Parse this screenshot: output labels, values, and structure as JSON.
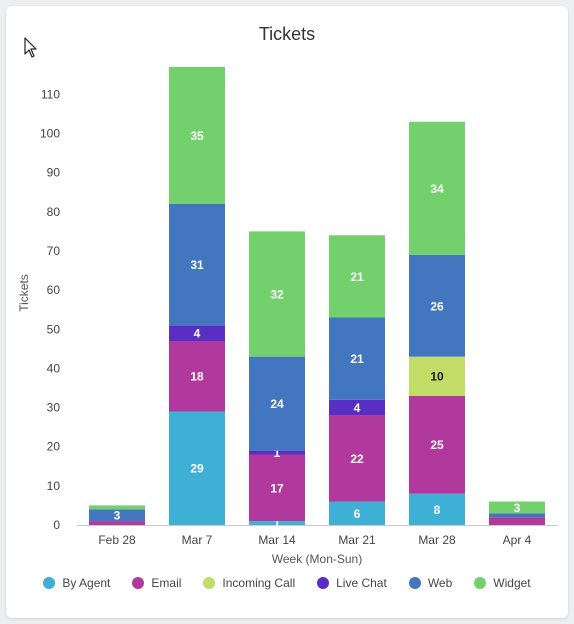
{
  "chart_data": {
    "type": "bar",
    "stacked": true,
    "title": "Tickets",
    "xlabel": "Week (Mon-Sun)",
    "ylabel": "Tickets",
    "ylim": [
      0,
      117
    ],
    "yticks": [
      0,
      10,
      20,
      30,
      40,
      50,
      60,
      70,
      80,
      90,
      100,
      110
    ],
    "categories": [
      "Feb 28",
      "Mar 7",
      "Mar 14",
      "Mar 21",
      "Mar 28",
      "Apr 4"
    ],
    "legend_position": "bottom",
    "series": [
      {
        "name": "By Agent",
        "color": "#3eb0d5",
        "values": [
          0,
          29,
          1,
          6,
          8,
          0
        ]
      },
      {
        "name": "Email",
        "color": "#b1399e",
        "values": [
          1,
          18,
          17,
          22,
          25,
          2
        ]
      },
      {
        "name": "Incoming Call",
        "color": "#c2dd67",
        "values": [
          0,
          0,
          0,
          0,
          10,
          0
        ]
      },
      {
        "name": "Live Chat",
        "color": "#592ec2",
        "values": [
          0,
          4,
          1,
          4,
          0,
          0
        ]
      },
      {
        "name": "Web",
        "color": "#4276be",
        "values": [
          3,
          31,
          24,
          21,
          26,
          1
        ]
      },
      {
        "name": "Widget",
        "color": "#72d16d",
        "values": [
          1,
          35,
          32,
          21,
          34,
          3
        ]
      }
    ],
    "data_labels": [
      [
        null,
        "29",
        "1",
        "6",
        "8",
        null
      ],
      [
        null,
        "18",
        "17",
        "22",
        "25",
        null
      ],
      [
        null,
        null,
        null,
        null,
        "10",
        null
      ],
      [
        null,
        "4",
        "1",
        "4",
        null,
        null
      ],
      [
        "3",
        "31",
        "24",
        "21",
        "26",
        null
      ],
      [
        null,
        "35",
        "32",
        "21",
        "34",
        "3"
      ]
    ]
  }
}
